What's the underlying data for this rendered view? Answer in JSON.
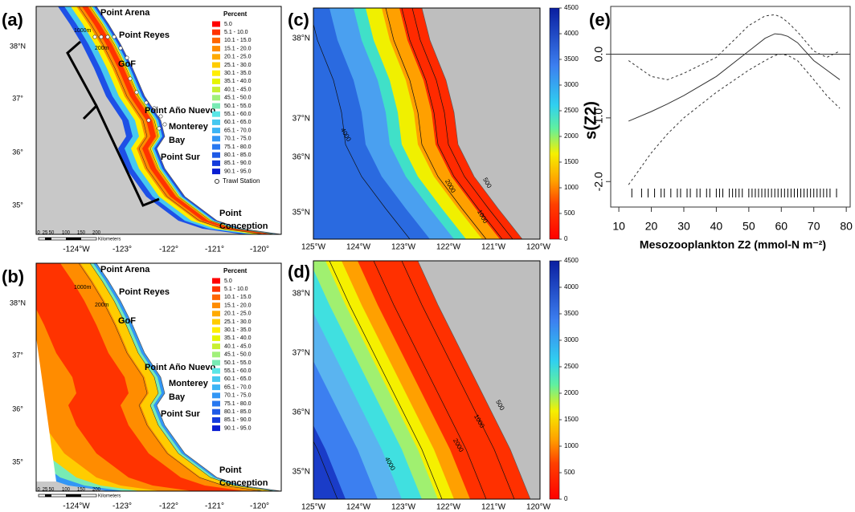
{
  "percent_legend": {
    "title": "Percent",
    "station": "Trawl Station",
    "entries": [
      {
        "label": "5.0",
        "color": "#ff0000"
      },
      {
        "label": "5.1 - 10.0",
        "color": "#ff3300"
      },
      {
        "label": "10.1 - 15.0",
        "color": "#ff6600"
      },
      {
        "label": "15.1 - 20.0",
        "color": "#ff8c00"
      },
      {
        "label": "20.1 - 25.0",
        "color": "#ffaa00"
      },
      {
        "label": "25.1 - 30.0",
        "color": "#ffcc00"
      },
      {
        "label": "30.1 - 35.0",
        "color": "#ffee00"
      },
      {
        "label": "35.1 - 40.0",
        "color": "#e6f500"
      },
      {
        "label": "40.1 - 45.0",
        "color": "#c8f032"
      },
      {
        "label": "45.1 - 50.0",
        "color": "#a0f07a"
      },
      {
        "label": "50.1 - 55.0",
        "color": "#78ebb4"
      },
      {
        "label": "55.1 - 60.0",
        "color": "#5ae6e6"
      },
      {
        "label": "60.1 - 65.0",
        "color": "#46c8f0"
      },
      {
        "label": "65.1 - 70.0",
        "color": "#3cb4f5"
      },
      {
        "label": "70.1 - 75.0",
        "color": "#3296f5"
      },
      {
        "label": "75.1 - 80.0",
        "color": "#2878f0"
      },
      {
        "label": "80.1 - 85.0",
        "color": "#1e5ae6"
      },
      {
        "label": "85.1 - 90.0",
        "color": "#143cdc"
      },
      {
        "label": "90.1 - 95.0",
        "color": "#0a1ed2"
      }
    ]
  },
  "colorbar": {
    "lim": [
      0,
      4500
    ],
    "ticks": [
      0,
      500,
      1000,
      1500,
      2000,
      2500,
      3000,
      3500,
      4000,
      4500
    ]
  },
  "maps": [
    {
      "label": "(a)",
      "places": [
        "Point Arena",
        "Point Reyes",
        "GoF",
        "Point Año Nuevo",
        "Monterey",
        "Bay",
        "Point Sur",
        "Point",
        "Conception"
      ],
      "isobaths": [
        "1000m",
        "200m"
      ],
      "scale": [
        "0",
        "25",
        "50",
        "100",
        "150",
        "200",
        "Kilometers"
      ],
      "lat_labels": [
        "38°N",
        "37°",
        "36°",
        "35°"
      ],
      "lon_labels": [
        "-124°W",
        "-123°",
        "-122°",
        "-121°",
        "-120°"
      ]
    },
    {
      "label": "(b)",
      "places": [
        "Point Arena",
        "Point Reyes",
        "GoF",
        "Point Año Nuevo",
        "Monterey",
        "Bay",
        "Point Sur",
        "Point",
        "Conception"
      ],
      "isobaths": [
        "1000m",
        "200m"
      ],
      "scale": [
        "0",
        "25",
        "50",
        "100",
        "150",
        "200",
        "Kilometers"
      ],
      "lat_labels": [
        "38°N",
        "37°",
        "36°",
        "35°"
      ],
      "lon_labels": [
        "-124°W",
        "-123°",
        "-122°",
        "-121°",
        "-120°"
      ]
    },
    {
      "label": "(c)",
      "contours": [
        "4000",
        "2000",
        "1000",
        "500"
      ],
      "lat_labels": [
        "38°N",
        "37°N",
        "36°N",
        "35°N"
      ],
      "lon_labels": [
        "125°W",
        "124°W",
        "123°W",
        "122°W",
        "121°W",
        "120°W"
      ]
    },
    {
      "label": "(d)",
      "contours": [
        "4000",
        "2000",
        "1000",
        "500"
      ],
      "lat_labels": [
        "38°N",
        "37°N",
        "36°N",
        "35°N"
      ],
      "lon_labels": [
        "125°W",
        "124°W",
        "123°W",
        "122°W",
        "121°W",
        "120°W"
      ]
    }
  ],
  "chart_data": {
    "type": "line",
    "label": "(e)",
    "ylabel": "s(Z2)",
    "xlabel": "Mesozooplankton Z2 (mmol-N m⁻²)",
    "x": [
      13,
      20,
      25,
      30,
      40,
      50,
      55,
      58,
      60,
      62,
      65,
      70,
      74,
      78
    ],
    "series": [
      {
        "color": "#333333",
        "line_style": "solid",
        "values": [
          -1.05,
          -0.9,
          -0.78,
          -0.65,
          -0.35,
          0.05,
          0.25,
          0.32,
          0.31,
          0.28,
          0.18,
          -0.1,
          -0.25,
          -0.4
        ]
      },
      {
        "color": "#333333",
        "line_style": "dashed",
        "values": [
          -0.1,
          -0.35,
          -0.4,
          -0.3,
          -0.05,
          0.45,
          0.6,
          0.62,
          0.58,
          0.5,
          0.35,
          0.05,
          -0.05,
          0.05
        ]
      },
      {
        "color": "#333333",
        "line_style": "dashed",
        "values": [
          -2.05,
          -1.55,
          -1.25,
          -1.0,
          -0.6,
          -0.25,
          -0.1,
          -0.02,
          0.0,
          -0.02,
          -0.1,
          -0.4,
          -0.65,
          -0.85
        ]
      }
    ],
    "reference_line": 0,
    "rug": [
      14,
      17,
      19,
      21,
      23,
      24,
      26,
      28,
      29,
      31,
      32,
      34,
      35,
      37,
      38,
      40,
      41,
      42,
      44,
      45,
      46,
      47,
      48,
      50,
      51,
      52,
      53,
      54,
      55,
      56,
      57,
      58,
      59,
      60,
      61,
      62,
      63,
      64,
      65,
      66,
      67,
      68,
      69,
      70,
      71,
      72,
      73,
      74,
      75,
      77
    ],
    "xlim": [
      7.5,
      81.2
    ],
    "ylim": [
      -2.4,
      0.75
    ],
    "xticks": [
      10,
      20,
      30,
      40,
      50,
      60,
      70,
      80
    ],
    "yticks": [
      {
        "value": -2,
        "label": "-2.0"
      },
      {
        "value": -1,
        "label": "-1.0"
      },
      {
        "value": 0,
        "label": "0.0"
      }
    ]
  }
}
